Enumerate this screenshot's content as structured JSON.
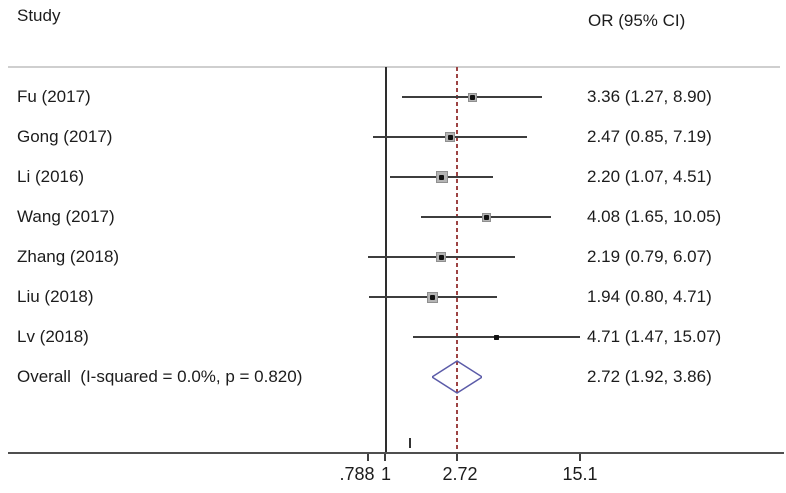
{
  "header": {
    "study_label": "Study",
    "or_label": "OR (95% CI)"
  },
  "chart_data": {
    "type": "forest",
    "x_scale": "log",
    "effect_measure": "OR",
    "null_line_value": 1,
    "pooled_line_value": 2.72,
    "axis_ticks": [
      {
        "label": ".788",
        "value": 0.788
      },
      {
        "label": "1",
        "value": 1
      },
      {
        "label": "2.72",
        "value": 2.72
      },
      {
        "label": "15.1",
        "value": 15.1
      }
    ],
    "studies": [
      {
        "label": "Fu (2017)",
        "or": 3.36,
        "ci_low": 1.27,
        "ci_high": 8.9,
        "or_text": "3.36 (1.27, 8.90)",
        "marker_size": 9
      },
      {
        "label": "Gong (2017)",
        "or": 2.47,
        "ci_low": 0.85,
        "ci_high": 7.19,
        "or_text": "2.47 (0.85, 7.19)",
        "marker_size": 10
      },
      {
        "label": "Li (2016)",
        "or": 2.2,
        "ci_low": 1.07,
        "ci_high": 4.51,
        "or_text": "2.20 (1.07, 4.51)",
        "marker_size": 12
      },
      {
        "label": "Wang (2017)",
        "or": 4.08,
        "ci_low": 1.65,
        "ci_high": 10.05,
        "or_text": "4.08 (1.65, 10.05)",
        "marker_size": 9
      },
      {
        "label": "Zhang (2018)",
        "or": 2.19,
        "ci_low": 0.79,
        "ci_high": 6.07,
        "or_text": "2.19 (0.79, 6.07)",
        "marker_size": 10
      },
      {
        "label": "Liu (2018)",
        "or": 1.94,
        "ci_low": 0.8,
        "ci_high": 4.71,
        "or_text": "1.94 (0.80, 4.71)",
        "marker_size": 11
      },
      {
        "label": "Lv (2018)",
        "or": 4.71,
        "ci_low": 1.47,
        "ci_high": 15.07,
        "or_text": "4.71 (1.47, 15.07)",
        "marker_size": 5
      }
    ],
    "overall": {
      "label": "Overall  (I-squared = 0.0%, p = 0.820)",
      "or": 2.72,
      "ci_low": 1.92,
      "ci_high": 3.86,
      "or_text": "2.72 (1.92, 3.86)"
    },
    "colors": {
      "ci_line": "#3d3d3d",
      "marker_fill": "#b4b4b4",
      "marker_border": "#8f8f8f",
      "point_dot": "#111111",
      "null_line": "#2e2e2e",
      "pooled_dashed_line": "#9d4343",
      "diamond_stroke": "#5b5ba8",
      "axis": "#4f4f4f",
      "separator": "#cfcfcf"
    }
  }
}
